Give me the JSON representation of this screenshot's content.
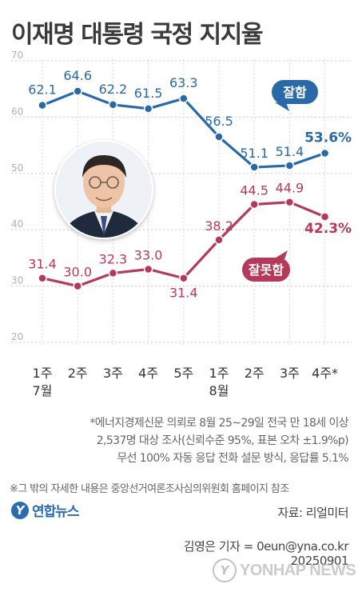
{
  "title": "이재명 대통령 국정 지지율",
  "chart_data": {
    "type": "line",
    "categories": [
      "1주\n7월",
      "2주",
      "3주",
      "4주",
      "5주",
      "1주\n8월",
      "2주",
      "3주",
      "4주*"
    ],
    "ylim": [
      20,
      70
    ],
    "yticks": [
      20,
      30,
      40,
      50,
      60,
      70
    ],
    "series": [
      {
        "name": "잘함",
        "color": "#2a69a7",
        "values": [
          62.1,
          64.6,
          62.2,
          61.5,
          63.3,
          56.5,
          51.1,
          51.4,
          53.6
        ],
        "labels": [
          "62.1",
          "64.6",
          "62.2",
          "61.5",
          "63.3",
          "56.5",
          "51.1",
          "51.4",
          "53.6%"
        ]
      },
      {
        "name": "잘못함",
        "color": "#b53a5a",
        "values": [
          31.4,
          30.0,
          32.3,
          33.0,
          31.4,
          38.2,
          44.5,
          44.9,
          42.3
        ],
        "labels": [
          "31.4",
          "30.0",
          "32.3",
          "33.0",
          "31.4",
          "38.2",
          "44.5",
          "44.9",
          "42.3%"
        ]
      }
    ]
  },
  "notes": {
    "line1": "*에너지경제신문 의뢰로 8월 25~29일 전국 만 18세 이상",
    "line2": "2,537명 대상 조사(신뢰수준 95%, 표본 오차 ±1.9%p)",
    "line3": "무선 100% 자동 응답 전화 설문 방식, 응답률 5.1%",
    "line4": "※그 밖의 자세한 내용은 중앙선거여론조사심의위원회 홈페이지 참조"
  },
  "logo": {
    "mark": "Y",
    "text": "연합뉴스"
  },
  "source": "자료: 리얼미터",
  "reporter": "김영은 기자 = 0eun@yna.co.kr",
  "date": "20250901",
  "watermark": {
    "mark": "Y",
    "text": "YONHAP NEWS"
  }
}
